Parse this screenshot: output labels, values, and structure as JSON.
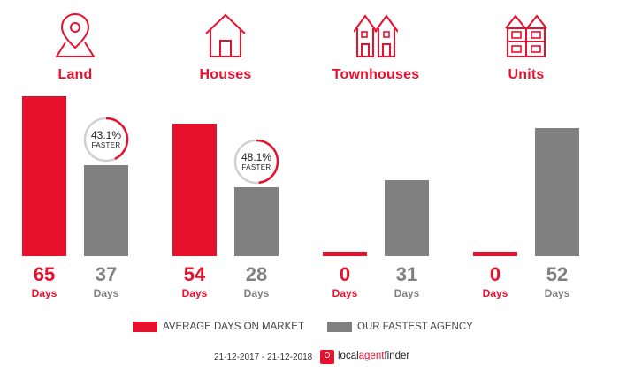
{
  "colors": {
    "market": "#e8112d",
    "agency": "#808080"
  },
  "chart_data": {
    "type": "bar",
    "categories": [
      "Land",
      "Houses",
      "Townhouses",
      "Units"
    ],
    "icons": [
      "map-pin-icon",
      "house-icon",
      "townhouses-icon",
      "units-icon"
    ],
    "series": [
      {
        "name": "AVERAGE DAYS ON MARKET",
        "values": [
          65,
          54,
          0,
          0
        ],
        "unit": "Days"
      },
      {
        "name": "OUR FASTEST AGENCY",
        "values": [
          37,
          28,
          31,
          52
        ],
        "unit": "Days"
      }
    ],
    "badges": [
      {
        "percent": "43.1%",
        "label": "FASTER",
        "fraction": 0.431
      },
      {
        "percent": "48.1%",
        "label": "FASTER",
        "fraction": 0.481
      },
      null,
      null
    ],
    "ylim": [
      0,
      65
    ]
  },
  "footer": {
    "date_range": "21-12-2017 - 21-12-2018",
    "brand_local": "local",
    "brand_agent": "agent",
    "brand_finder": "finder"
  }
}
